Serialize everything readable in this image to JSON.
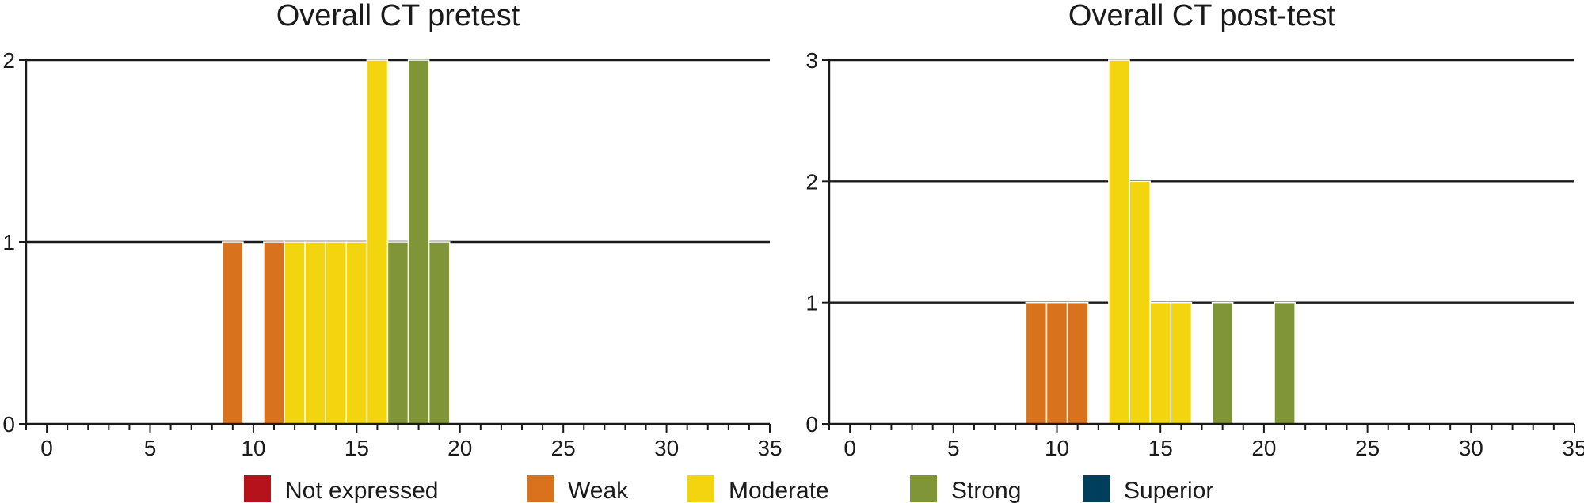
{
  "legend": [
    {
      "label": "Not expressed",
      "color": "#b5121b"
    },
    {
      "label": "Weak",
      "color": "#d9721c"
    },
    {
      "label": "Moderate",
      "color": "#f2d50f"
    },
    {
      "label": "Strong",
      "color": "#7f9537"
    },
    {
      "label": "Superior",
      "color": "#003f5c"
    }
  ],
  "chart_data": [
    {
      "type": "bar",
      "title": "Overall CT pretest",
      "xlabel": "",
      "ylabel": "",
      "xlim": [
        -1,
        35
      ],
      "ylim": [
        0,
        2
      ],
      "x_ticks": [
        0,
        5,
        10,
        15,
        20,
        25,
        30,
        35
      ],
      "y_ticks": [
        0,
        1,
        2
      ],
      "grid": true,
      "bars": [
        {
          "x": 9,
          "value": 1,
          "category": "Weak"
        },
        {
          "x": 11,
          "value": 1,
          "category": "Weak"
        },
        {
          "x": 12,
          "value": 1,
          "category": "Moderate"
        },
        {
          "x": 13,
          "value": 1,
          "category": "Moderate"
        },
        {
          "x": 14,
          "value": 1,
          "category": "Moderate"
        },
        {
          "x": 15,
          "value": 1,
          "category": "Moderate"
        },
        {
          "x": 16,
          "value": 2,
          "category": "Moderate"
        },
        {
          "x": 17,
          "value": 1,
          "category": "Strong"
        },
        {
          "x": 18,
          "value": 2,
          "category": "Strong"
        },
        {
          "x": 19,
          "value": 1,
          "category": "Strong"
        }
      ]
    },
    {
      "type": "bar",
      "title": "Overall CT post-test",
      "xlabel": "",
      "ylabel": "",
      "xlim": [
        -1,
        35
      ],
      "ylim": [
        0,
        3
      ],
      "x_ticks": [
        0,
        5,
        10,
        15,
        20,
        25,
        30,
        35
      ],
      "y_ticks": [
        0,
        1,
        2,
        3
      ],
      "grid": true,
      "bars": [
        {
          "x": 9,
          "value": 1,
          "category": "Weak"
        },
        {
          "x": 10,
          "value": 1,
          "category": "Weak"
        },
        {
          "x": 11,
          "value": 1,
          "category": "Weak"
        },
        {
          "x": 13,
          "value": 3,
          "category": "Moderate"
        },
        {
          "x": 14,
          "value": 2,
          "category": "Moderate"
        },
        {
          "x": 15,
          "value": 1,
          "category": "Moderate"
        },
        {
          "x": 16,
          "value": 1,
          "category": "Moderate"
        },
        {
          "x": 18,
          "value": 1,
          "category": "Strong"
        },
        {
          "x": 21,
          "value": 1,
          "category": "Strong"
        }
      ]
    }
  ]
}
